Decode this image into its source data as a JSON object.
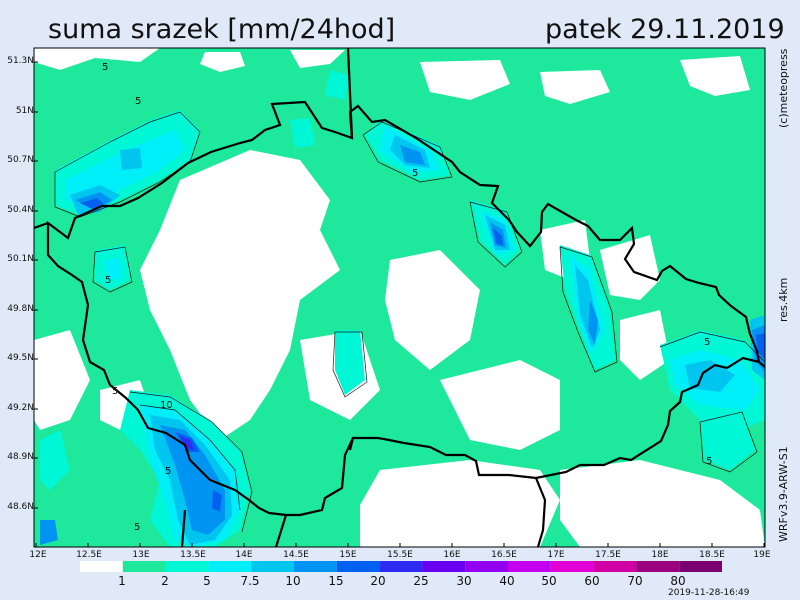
{
  "header": {
    "title": "suma srazek [mm/24hod]",
    "date": "patek 29.11.2019"
  },
  "side_labels": {
    "credit": "(c)meteopress",
    "resolution": "res.4km",
    "model": "WRFv3.9-ARW-S1"
  },
  "lat_ticks": [
    "51.3N",
    "51N",
    "50.7N",
    "50.4N",
    "50.1N",
    "49.8N",
    "49.5N",
    "49.2N",
    "48.9N",
    "48.6N"
  ],
  "lon_ticks": [
    "12E",
    "12.5E",
    "13E",
    "13.5E",
    "14E",
    "14.5E",
    "15E",
    "15.5E",
    "16E",
    "16.5E",
    "17E",
    "17.5E",
    "18E",
    "18.5E",
    "19E"
  ],
  "contour_labels": [
    "5",
    "5",
    "5",
    "5",
    "5",
    "5",
    "10",
    "5",
    "5",
    "5"
  ],
  "legend": {
    "levels": [
      "1",
      "2",
      "5",
      "7.5",
      "10",
      "15",
      "20",
      "25",
      "30",
      "40",
      "50",
      "60",
      "70",
      "80"
    ],
    "colors": [
      "#ffffff",
      "#1ee89c",
      "#00f7d6",
      "#00eef7",
      "#00c6ef",
      "#0094f2",
      "#0060ef",
      "#2e2cf2",
      "#6a00f0",
      "#9300f0",
      "#c300ef",
      "#e200d6",
      "#d000a4",
      "#9b007e",
      "#7a0070"
    ]
  },
  "timestamp": "2019-11-28-16:49"
}
